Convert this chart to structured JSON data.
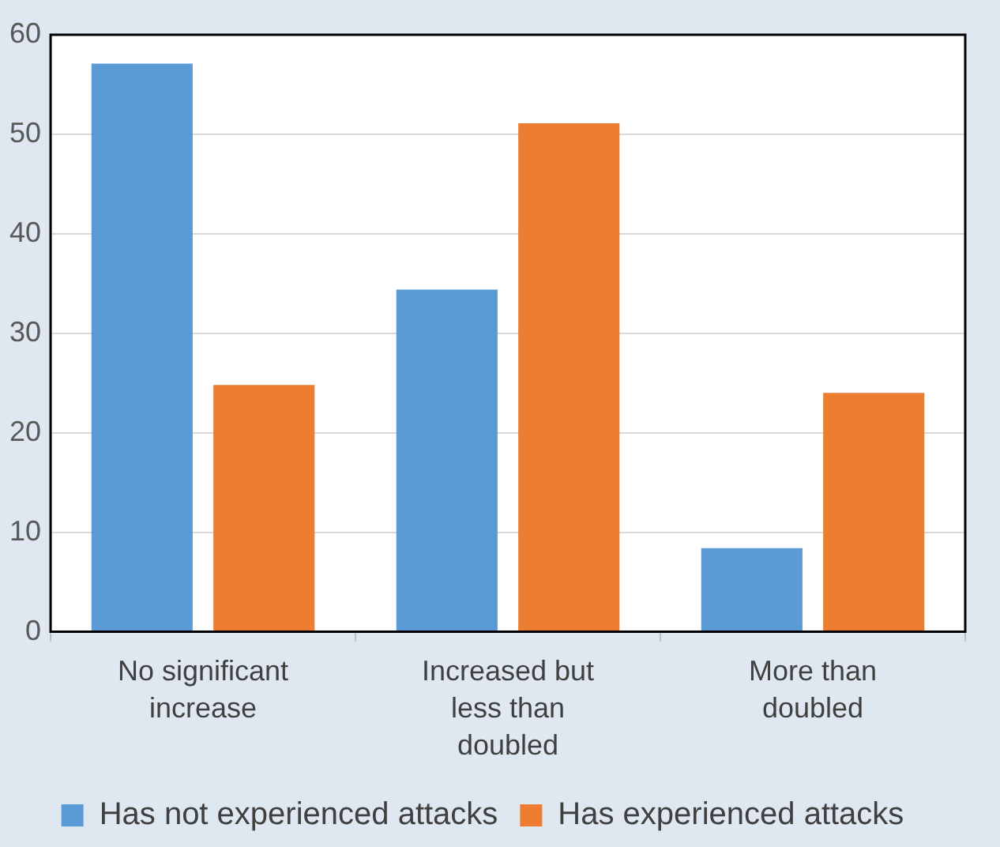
{
  "chart_data": {
    "type": "bar",
    "categories": [
      "No significant increase",
      "Increased but less than doubled",
      "More than doubled"
    ],
    "series": [
      {
        "name": "Has not experienced attacks",
        "color": "#5b9bd5",
        "values": [
          57.1,
          34.4,
          8.4
        ]
      },
      {
        "name": "Has experienced attacks",
        "color": "#ed7d31",
        "values": [
          24.8,
          51.1,
          24
        ]
      }
    ],
    "ylim": [
      0,
      60
    ],
    "yticks": [
      0,
      10,
      20,
      30,
      40,
      50,
      60
    ],
    "grid": "y",
    "legend": "bottom"
  }
}
